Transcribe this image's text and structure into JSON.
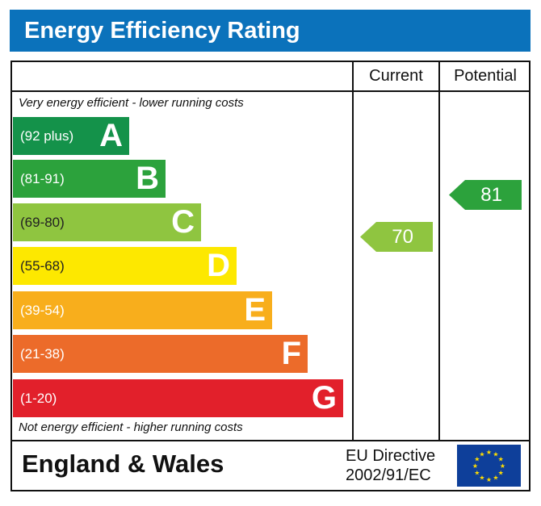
{
  "title": "Energy Efficiency Rating",
  "columns": {
    "current": "Current",
    "potential": "Potential"
  },
  "top_note": "Very energy efficient - lower running costs",
  "bottom_note": "Not energy efficient - higher running costs",
  "footer": {
    "region": "England & Wales",
    "directive_line1": "EU Directive",
    "directive_line2": "2002/91/EC"
  },
  "chart_data": {
    "type": "bar",
    "bands": [
      {
        "letter": "A",
        "range": "(92 plus)",
        "color": "#14924a"
      },
      {
        "letter": "B",
        "range": "(81-91)",
        "color": "#2ca23c"
      },
      {
        "letter": "C",
        "range": "(69-80)",
        "color": "#8fc540"
      },
      {
        "letter": "D",
        "range": "(55-68)",
        "color": "#fde800"
      },
      {
        "letter": "E",
        "range": "(39-54)",
        "color": "#f8ae1c"
      },
      {
        "letter": "F",
        "range": "(21-38)",
        "color": "#ec6b2a"
      },
      {
        "letter": "G",
        "range": "(1-20)",
        "color": "#e2202b"
      }
    ],
    "current": {
      "value": "70",
      "band": "C",
      "color": "#8fc540"
    },
    "potential": {
      "value": "81",
      "band": "B",
      "color": "#2ca23c"
    }
  }
}
